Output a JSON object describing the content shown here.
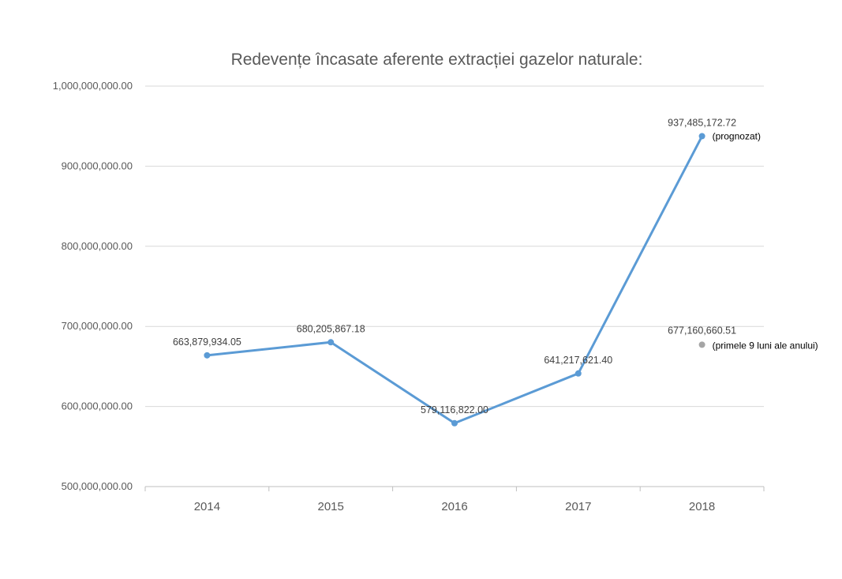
{
  "chart_data": {
    "type": "line",
    "title": "Redevențe încasate aferente extracției gazelor naturale:",
    "xlabel": "",
    "ylabel": "",
    "ylim": [
      500000000,
      1000000000
    ],
    "grid": true,
    "categories": [
      "2014",
      "2015",
      "2016",
      "2017",
      "2018"
    ],
    "y_tick_labels": [
      "500,000,000.00",
      "600,000,000.00",
      "700,000,000.00",
      "800,000,000.00",
      "900,000,000.00",
      "1,000,000,000.00"
    ],
    "y_ticks": [
      500000000,
      600000000,
      700000000,
      800000000,
      900000000,
      1000000000
    ],
    "series": [
      {
        "values": [
          663879934.05,
          680205867.18,
          579116822.0,
          641217621.4,
          937485172.72
        ],
        "labels": [
          "663,879,934.05",
          "680,205,867.18",
          "579,116,822.00",
          "641,217,621.40",
          "937,485,172.72"
        ],
        "color": "#5b9bd5"
      }
    ],
    "annotations": [
      {
        "category": "2018",
        "text": "(prognozat)"
      }
    ],
    "extra_points": [
      {
        "category": "2018",
        "value": 677160660.51,
        "label": "677,160,660.51",
        "note": "(primele 9 luni ale anului)",
        "color": "#a5a5a5"
      }
    ]
  }
}
